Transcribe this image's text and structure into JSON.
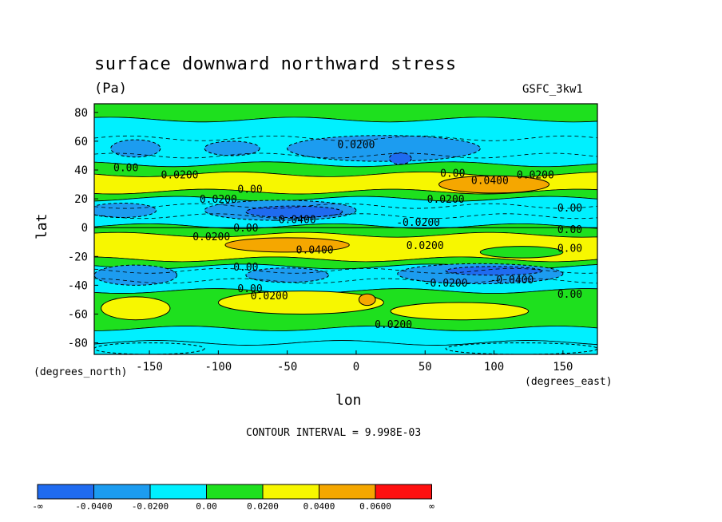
{
  "header": {
    "title": "surface downward northward stress",
    "units": "(Pa)",
    "model": "GSFC_3kw1"
  },
  "axes": {
    "xlabel": "lon",
    "ylabel": "lat",
    "x_unit_note": "(degrees_east)",
    "y_unit_note": "(degrees_north)"
  },
  "footer": {
    "contour_interval": "CONTOUR INTERVAL = 9.998E-03"
  },
  "colors": {
    "lt_m004": "#1f6bf0",
    "m004_m002": "#1c9cf0",
    "m002_0": "#00f0ff",
    "0_002": "#1ee01e",
    "002_004": "#f7f700",
    "004_006": "#f5a700",
    "gt_006": "#ff1010"
  },
  "chart_data": {
    "type": "contour",
    "title": "surface downward northward stress",
    "units": "Pa",
    "xlabel": "lon",
    "ylabel": "lat",
    "xlim": [
      -190,
      175
    ],
    "ylim": [
      -88,
      86
    ],
    "x_ticks": [
      -150,
      -100,
      -50,
      0,
      50,
      100,
      150
    ],
    "y_ticks": [
      80,
      60,
      40,
      20,
      0,
      -20,
      -40,
      -60,
      -80
    ],
    "x_tick_labels": [
      "-150",
      "-100",
      "-50",
      "0",
      "50",
      "100",
      "150"
    ],
    "y_tick_labels": [
      "80",
      "60",
      "40",
      "20",
      "0",
      "-20",
      "-40",
      "-60",
      "-80"
    ],
    "contour_interval": 0.009998,
    "levels": [
      -0.04,
      -0.02,
      0.0,
      0.02,
      0.04,
      0.06
    ],
    "colorbar": {
      "labels": [
        "-∞",
        "-0.0400",
        "-0.0200",
        "0.00",
        "0.0200",
        "0.0400",
        "0.0600",
        "∞"
      ],
      "colors": [
        "#1f6bf0",
        "#1c9cf0",
        "#00f0ff",
        "#1ee01e",
        "#f7f700",
        "#f5a700",
        "#ff1010"
      ]
    },
    "bands": [
      {
        "lat_max": 86,
        "lat_min": 75,
        "class": 3
      },
      {
        "lat_max": 75,
        "lat_min": 44,
        "class": 2
      },
      {
        "lat_max": 44,
        "lat_min": 37,
        "class": 3
      },
      {
        "lat_max": 37,
        "lat_min": 25,
        "class": 4
      },
      {
        "lat_max": 25,
        "lat_min": 20,
        "class": 3
      },
      {
        "lat_max": 20,
        "lat_min": 1,
        "class": 2
      },
      {
        "lat_max": 1,
        "lat_min": -5,
        "class": 3
      },
      {
        "lat_max": -5,
        "lat_min": -22,
        "class": 4
      },
      {
        "lat_max": -22,
        "lat_min": -27,
        "class": 3
      },
      {
        "lat_max": -27,
        "lat_min": -44,
        "class": 2
      },
      {
        "lat_max": -44,
        "lat_min": -70,
        "class": 3
      },
      {
        "lat_max": -70,
        "lat_min": -80,
        "class": 2
      },
      {
        "lat_max": -80,
        "lat_min": -88,
        "class": 2
      }
    ],
    "blobs": [
      {
        "lon": -160,
        "lat": 55,
        "rlon": 18,
        "rlat": 6,
        "class": 1
      },
      {
        "lon": -90,
        "lat": 55,
        "rlon": 20,
        "rlat": 5,
        "class": 1
      },
      {
        "lon": 20,
        "lat": 55,
        "rlon": 70,
        "rlat": 9,
        "class": 1
      },
      {
        "lon": 32,
        "lat": 48,
        "rlon": 8,
        "rlat": 4,
        "class": 0
      },
      {
        "lon": 100,
        "lat": 30,
        "rlon": 40,
        "rlat": 6,
        "class": 5
      },
      {
        "lon": -55,
        "lat": 12,
        "rlon": 55,
        "rlat": 7,
        "class": 1
      },
      {
        "lon": -45,
        "lat": 11,
        "rlon": 35,
        "rlat": 4,
        "class": 0
      },
      {
        "lon": -170,
        "lat": 12,
        "rlon": 25,
        "rlat": 5,
        "class": 1
      },
      {
        "lon": -50,
        "lat": -12,
        "rlon": 45,
        "rlat": 5,
        "class": 5
      },
      {
        "lon": 120,
        "lat": -17,
        "rlon": 30,
        "rlat": 4,
        "class": 3
      },
      {
        "lon": -160,
        "lat": -33,
        "rlon": 30,
        "rlat": 7,
        "class": 1
      },
      {
        "lon": -50,
        "lat": -33,
        "rlon": 30,
        "rlat": 5,
        "class": 1
      },
      {
        "lon": 90,
        "lat": -32,
        "rlon": 60,
        "rlat": 7,
        "class": 1
      },
      {
        "lon": 100,
        "lat": -30,
        "rlon": 35,
        "rlat": 3,
        "class": 0
      },
      {
        "lon": -160,
        "lat": -56,
        "rlon": 25,
        "rlat": 8,
        "class": 4
      },
      {
        "lon": -40,
        "lat": -52,
        "rlon": 60,
        "rlat": 8,
        "class": 4
      },
      {
        "lon": 8,
        "lat": -50,
        "rlon": 6,
        "rlat": 4,
        "class": 5
      },
      {
        "lon": 75,
        "lat": -58,
        "rlon": 50,
        "rlat": 6,
        "class": 4
      },
      {
        "lon": -150,
        "lat": -84,
        "rlon": 40,
        "rlat": 4,
        "class": 2
      },
      {
        "lon": 120,
        "lat": -84,
        "rlon": 55,
        "rlat": 4,
        "class": 2
      }
    ],
    "annotations": [
      {
        "text": "0.0200",
        "lon": 0,
        "lat": 58
      },
      {
        "text": "0.00",
        "lon": -167,
        "lat": 42
      },
      {
        "text": "0.0200",
        "lon": -128,
        "lat": 37
      },
      {
        "text": "0.00",
        "lon": 70,
        "lat": 38
      },
      {
        "text": "0.0400",
        "lon": 97,
        "lat": 33
      },
      {
        "text": "0.0200",
        "lon": 130,
        "lat": 37
      },
      {
        "text": "0.0200",
        "lon": -100,
        "lat": 20
      },
      {
        "text": "0.00",
        "lon": -77,
        "lat": 27
      },
      {
        "text": "0.0200",
        "lon": 65,
        "lat": 20
      },
      {
        "text": "0.00",
        "lon": 155,
        "lat": 14
      },
      {
        "text": "-0.0400",
        "lon": -45,
        "lat": 6
      },
      {
        "text": "-0.0200",
        "lon": 45,
        "lat": 4
      },
      {
        "text": "0.00",
        "lon": 155,
        "lat": -1
      },
      {
        "text": "0.0200",
        "lon": -105,
        "lat": -6
      },
      {
        "text": "0.00",
        "lon": -80,
        "lat": 0
      },
      {
        "text": "0.0400",
        "lon": -30,
        "lat": -15
      },
      {
        "text": "0.0200",
        "lon": 50,
        "lat": -12
      },
      {
        "text": "0.00",
        "lon": 155,
        "lat": -14
      },
      {
        "text": "0.00",
        "lon": -80,
        "lat": -27
      },
      {
        "text": "-0.0200",
        "lon": 65,
        "lat": -38
      },
      {
        "text": "-0.0400",
        "lon": 113,
        "lat": -36
      },
      {
        "text": "0.00",
        "lon": -77,
        "lat": -42
      },
      {
        "text": "0.0200",
        "lon": -63,
        "lat": -47
      },
      {
        "text": "0.00",
        "lon": 155,
        "lat": -46
      },
      {
        "text": "0.0200",
        "lon": 27,
        "lat": -67
      }
    ]
  }
}
